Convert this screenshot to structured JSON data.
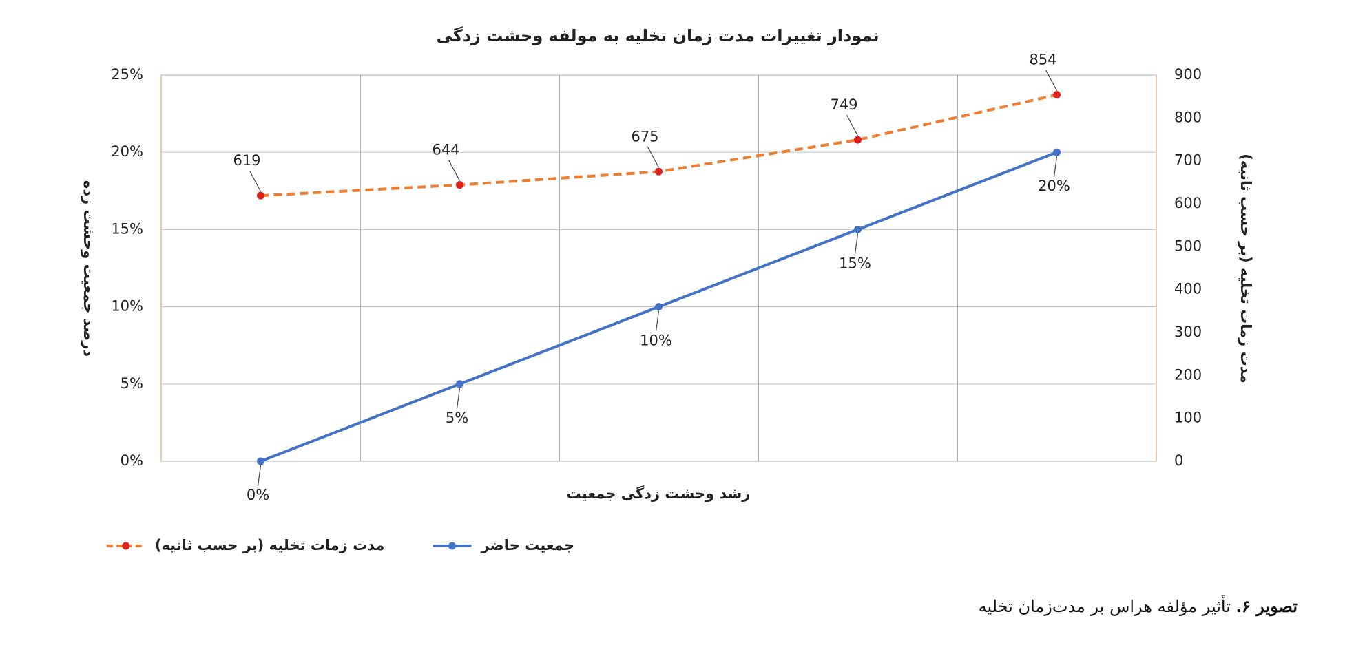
{
  "chart_data": {
    "type": "line",
    "title": "نمودار تغییرات مدت زمان تخلیه به مولفه وحشت زدگی",
    "x_label": "رشد وحشت زدگی جمعیت",
    "y_label": "درصد جمعیت وحشت زده",
    "y2_label": "مدت زمات تخلیه (بر حسب ثانیه)",
    "categories": [
      null,
      null,
      null,
      null,
      null
    ],
    "series": [
      {
        "name": "جمعیت حاضر",
        "color": "#4472c4",
        "marker_color": "#4472c4",
        "dashed": false,
        "values": [
          0,
          5,
          10,
          15,
          20
        ],
        "value_labels": [
          "0%",
          "5%",
          "10%",
          "15%",
          "20%"
        ]
      },
      {
        "name": "مدت زمات تخلیه (بر حسب ثانیه)",
        "color": "#ed7d31",
        "marker_color": "#e0201a",
        "dashed": true,
        "axis": "y2",
        "values": [
          619,
          644,
          675,
          749,
          854
        ]
      }
    ],
    "ylim": [
      0,
      25
    ],
    "yticks": [
      {
        "value": 0,
        "label": "0%"
      },
      {
        "value": 5,
        "label": "5%"
      },
      {
        "value": 10,
        "label": "10%"
      },
      {
        "value": 15,
        "label": "15%"
      },
      {
        "value": 20,
        "label": "20%"
      },
      {
        "value": 25,
        "label": "25%"
      }
    ],
    "y2lim": [
      0,
      900
    ],
    "y2ticks": [
      0,
      100,
      200,
      300,
      400,
      500,
      600,
      700,
      800,
      900
    ],
    "grid": true,
    "legend": "bottom"
  },
  "caption": {
    "label": "تصویر ۶.",
    "text": "تأثیر مؤلفه هراس بر مدت‌زمان تخلیه"
  }
}
